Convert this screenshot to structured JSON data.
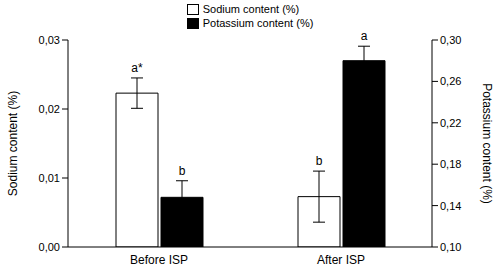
{
  "chart_data": {
    "type": "bar",
    "categories": [
      "Before ISP",
      "After ISP"
    ],
    "series": [
      {
        "name": "Sodium content (%)",
        "color": "#ffffff",
        "values": [
          0.0223,
          0.0073
        ],
        "error": [
          0.0022,
          0.0037
        ],
        "annotations": [
          "a*",
          "b"
        ]
      },
      {
        "name": "Potassium content (%)",
        "color": "#000000",
        "values": [
          0.148,
          0.28
        ],
        "error": [
          0.016,
          0.014
        ],
        "annotations": [
          "b",
          "a"
        ],
        "axis": "y2"
      }
    ],
    "y_label": "Sodium content (%)",
    "y2_label": "Potassium content (%)",
    "ylim": [
      0,
      0.03
    ],
    "yticks": [
      {
        "value": 0,
        "label": "0,00"
      },
      {
        "value": 0.01,
        "label": "0,01"
      },
      {
        "value": 0.02,
        "label": "0,02"
      },
      {
        "value": 0.03,
        "label": "0,03"
      }
    ],
    "y2lim": [
      0.1,
      0.3
    ],
    "y2ticks": [
      {
        "value": 0.1,
        "label": "0,10"
      },
      {
        "value": 0.14,
        "label": "0,14"
      },
      {
        "value": 0.18,
        "label": "0,18"
      },
      {
        "value": 0.22,
        "label": "0,22"
      },
      {
        "value": 0.26,
        "label": "0,26"
      },
      {
        "value": 0.3,
        "label": "0,30"
      }
    ],
    "legend": "top"
  }
}
